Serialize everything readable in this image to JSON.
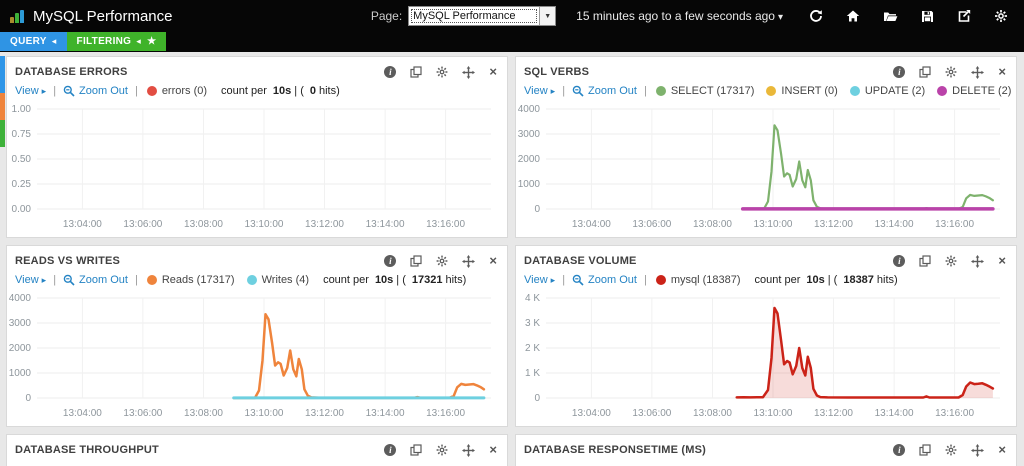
{
  "ui": {
    "sep": "|",
    "icons": {
      "caret_right": "▸",
      "caret_left": "◂",
      "caret_down": "▾",
      "select_arrow": "▼",
      "star": "★",
      "close": "×",
      "info": "i"
    }
  },
  "topbar": {
    "title": "MySQL Performance",
    "page_label": "Page:",
    "page_value": "MySQL Performance",
    "time_range": "15 minutes ago to a few seconds ago",
    "icon_names": [
      "refresh",
      "home",
      "open-folder",
      "save",
      "share",
      "settings"
    ]
  },
  "tabs": {
    "query": "QUERY",
    "filtering": "FILTERING"
  },
  "row_toggles": [
    {
      "color": "#2f96e8",
      "height": 37
    },
    {
      "color": "#ef843c",
      "height": 27
    },
    {
      "color": "#3eb139",
      "height": 27
    }
  ],
  "panels": [
    {
      "title": "DATABASE ERRORS",
      "view": "View",
      "zoom_out": "Zoom Out",
      "legend": [
        {
          "label": "errors (0)",
          "color": "#e24d42"
        }
      ],
      "meta": {
        "pre": "count per",
        "interval": "10s",
        "open": "| (",
        "hits": "0",
        "post": "hits)"
      }
    },
    {
      "title": "SQL VERBS",
      "view": "View",
      "zoom_out": "Zoom Out",
      "legend": [
        {
          "label": "SELECT (17317)",
          "color": "#7eb26d"
        },
        {
          "label": "INSERT (0)",
          "color": "#eab839"
        },
        {
          "label": "UPDATE (2)",
          "color": "#6ed0e0"
        },
        {
          "label": "DELETE (2)",
          "color": "#ba43a9"
        }
      ],
      "meta": {
        "pre": "count per",
        "interval": "10s",
        "open": "| (",
        "hits": "17321",
        "post": "hits)"
      }
    },
    {
      "title": "READS VS WRITES",
      "view": "View",
      "zoom_out": "Zoom Out",
      "legend": [
        {
          "label": "Reads (17317)",
          "color": "#ef843c"
        },
        {
          "label": "Writes (4)",
          "color": "#6ed0e0"
        }
      ],
      "meta": {
        "pre": "count per",
        "interval": "10s",
        "open": "| (",
        "hits": "17321",
        "post": "hits)"
      }
    },
    {
      "title": "DATABASE VOLUME",
      "view": "View",
      "zoom_out": "Zoom Out",
      "legend": [
        {
          "label": "mysql (18387)",
          "color": "#cb2318"
        }
      ],
      "meta": {
        "pre": "count per",
        "interval": "10s",
        "open": "| (",
        "hits": "18387",
        "post": "hits)"
      }
    },
    {
      "title": "DATABASE THROUGHPUT"
    },
    {
      "title": "DATABASE RESPONSETIME (MS)"
    }
  ],
  "chart_data": [
    {
      "id": "errors",
      "type": "line",
      "title": "DATABASE ERRORS",
      "x_domain": [
        0,
        900
      ],
      "x_unit": "seconds after 13:02:30",
      "ylim": [
        0,
        1
      ],
      "grid": true,
      "xticks": [
        {
          "v": 90,
          "label": "13:04:00"
        },
        {
          "v": 210,
          "label": "13:06:00"
        },
        {
          "v": 330,
          "label": "13:08:00"
        },
        {
          "v": 450,
          "label": "13:10:00"
        },
        {
          "v": 570,
          "label": "13:12:00"
        },
        {
          "v": 690,
          "label": "13:14:00"
        },
        {
          "v": 810,
          "label": "13:16:00"
        }
      ],
      "yticks": [
        {
          "v": 1,
          "label": "1.00"
        },
        {
          "v": 0.75,
          "label": "0.75"
        },
        {
          "v": 0.5,
          "label": "0.50"
        },
        {
          "v": 0.25,
          "label": "0.25"
        },
        {
          "v": 0,
          "label": "0.00"
        }
      ],
      "series": [
        {
          "name": "errors",
          "color": "#e24d42",
          "width": 2,
          "points": []
        }
      ]
    },
    {
      "id": "verbs",
      "type": "line",
      "title": "SQL VERBS",
      "x_domain": [
        0,
        900
      ],
      "x_unit": "seconds after 13:02:30",
      "ylim": [
        0,
        4000
      ],
      "grid": true,
      "xticks": [
        {
          "v": 90,
          "label": "13:04:00"
        },
        {
          "v": 210,
          "label": "13:06:00"
        },
        {
          "v": 330,
          "label": "13:08:00"
        },
        {
          "v": 450,
          "label": "13:10:00"
        },
        {
          "v": 570,
          "label": "13:12:00"
        },
        {
          "v": 690,
          "label": "13:14:00"
        },
        {
          "v": 810,
          "label": "13:16:00"
        }
      ],
      "yticks": [
        {
          "v": 4000,
          "label": "4000"
        },
        {
          "v": 3000,
          "label": "3000"
        },
        {
          "v": 2000,
          "label": "2000"
        },
        {
          "v": 1000,
          "label": "1000"
        },
        {
          "v": 0,
          "label": "0"
        }
      ],
      "series": [
        {
          "name": "SELECT",
          "color": "#7eb26d",
          "width": 2.2,
          "points": [
            [
              390,
              2
            ],
            [
              420,
              2
            ],
            [
              432,
              2
            ],
            [
              440,
              300
            ],
            [
              447,
              1500
            ],
            [
              453,
              3350
            ],
            [
              459,
              3150
            ],
            [
              466,
              2200
            ],
            [
              472,
              1300
            ],
            [
              478,
              1430
            ],
            [
              483,
              1370
            ],
            [
              489,
              900
            ],
            [
              496,
              1200
            ],
            [
              502,
              1900
            ],
            [
              508,
              1150
            ],
            [
              514,
              870
            ],
            [
              519,
              1560
            ],
            [
              525,
              1150
            ],
            [
              530,
              350
            ],
            [
              537,
              90
            ],
            [
              544,
              25
            ],
            [
              558,
              8
            ],
            [
              600,
              5
            ],
            [
              660,
              5
            ],
            [
              720,
              5
            ],
            [
              748,
              8
            ],
            [
              754,
              35
            ],
            [
              760,
              8
            ],
            [
              800,
              5
            ],
            [
              818,
              6
            ],
            [
              826,
              80
            ],
            [
              833,
              430
            ],
            [
              841,
              565
            ],
            [
              849,
              525
            ],
            [
              857,
              540
            ],
            [
              865,
              555
            ],
            [
              872,
              505
            ],
            [
              880,
              430
            ],
            [
              886,
              350
            ]
          ]
        },
        {
          "name": "INSERT",
          "color": "#eab839",
          "width": 2,
          "points": [
            [
              390,
              5
            ],
            [
              886,
              5
            ]
          ]
        },
        {
          "name": "UPDATE",
          "color": "#6ed0e0",
          "width": 3,
          "points": [
            [
              390,
              5
            ],
            [
              886,
              5
            ]
          ]
        },
        {
          "name": "DELETE",
          "color": "#ba43a9",
          "width": 3.5,
          "points": [
            [
              390,
              5
            ],
            [
              886,
              5
            ]
          ]
        }
      ]
    },
    {
      "id": "readswrites",
      "type": "line",
      "title": "READS VS WRITES",
      "x_domain": [
        0,
        900
      ],
      "x_unit": "seconds after 13:02:30",
      "ylim": [
        0,
        4000
      ],
      "grid": true,
      "xticks": [
        {
          "v": 90,
          "label": "13:04:00"
        },
        {
          "v": 210,
          "label": "13:06:00"
        },
        {
          "v": 330,
          "label": "13:08:00"
        },
        {
          "v": 450,
          "label": "13:10:00"
        },
        {
          "v": 570,
          "label": "13:12:00"
        },
        {
          "v": 690,
          "label": "13:14:00"
        },
        {
          "v": 810,
          "label": "13:16:00"
        }
      ],
      "yticks": [
        {
          "v": 4000,
          "label": "4000"
        },
        {
          "v": 3000,
          "label": "3000"
        },
        {
          "v": 2000,
          "label": "2000"
        },
        {
          "v": 1000,
          "label": "1000"
        },
        {
          "v": 0,
          "label": "0"
        }
      ],
      "series": [
        {
          "name": "Reads",
          "color": "#ef843c",
          "width": 2.5,
          "points": [
            [
              390,
              2
            ],
            [
              420,
              2
            ],
            [
              432,
              2
            ],
            [
              440,
              300
            ],
            [
              447,
              1500
            ],
            [
              453,
              3350
            ],
            [
              459,
              3150
            ],
            [
              466,
              2200
            ],
            [
              472,
              1300
            ],
            [
              478,
              1430
            ],
            [
              483,
              1370
            ],
            [
              489,
              900
            ],
            [
              496,
              1200
            ],
            [
              502,
              1900
            ],
            [
              508,
              1150
            ],
            [
              514,
              870
            ],
            [
              519,
              1560
            ],
            [
              525,
              1150
            ],
            [
              530,
              350
            ],
            [
              537,
              90
            ],
            [
              544,
              25
            ],
            [
              558,
              8
            ],
            [
              600,
              5
            ],
            [
              660,
              5
            ],
            [
              720,
              5
            ],
            [
              748,
              8
            ],
            [
              754,
              35
            ],
            [
              760,
              8
            ],
            [
              800,
              5
            ],
            [
              818,
              6
            ],
            [
              826,
              80
            ],
            [
              833,
              430
            ],
            [
              841,
              565
            ],
            [
              849,
              525
            ],
            [
              857,
              540
            ],
            [
              865,
              555
            ],
            [
              872,
              505
            ],
            [
              880,
              430
            ],
            [
              886,
              350
            ]
          ]
        },
        {
          "name": "Writes",
          "color": "#6ed0e0",
          "width": 3,
          "points": [
            [
              390,
              5
            ],
            [
              886,
              5
            ]
          ]
        }
      ]
    },
    {
      "id": "volume",
      "type": "area",
      "title": "DATABASE VOLUME",
      "x_domain": [
        0,
        900
      ],
      "x_unit": "seconds after 13:02:30",
      "ylim": [
        0,
        4000
      ],
      "grid": true,
      "xticks": [
        {
          "v": 90,
          "label": "13:04:00"
        },
        {
          "v": 210,
          "label": "13:06:00"
        },
        {
          "v": 330,
          "label": "13:08:00"
        },
        {
          "v": 450,
          "label": "13:10:00"
        },
        {
          "v": 570,
          "label": "13:12:00"
        },
        {
          "v": 690,
          "label": "13:14:00"
        },
        {
          "v": 810,
          "label": "13:16:00"
        }
      ],
      "yticks": [
        {
          "v": 4000,
          "label": "4 K"
        },
        {
          "v": 3000,
          "label": "3 K"
        },
        {
          "v": 2000,
          "label": "2 K"
        },
        {
          "v": 1000,
          "label": "1 K"
        },
        {
          "v": 0,
          "label": "0"
        }
      ],
      "series": [
        {
          "name": "mysql",
          "color": "#cb2318",
          "width": 2.5,
          "fill": "rgba(203,35,24,0.16)",
          "points": [
            [
              378,
              25
            ],
            [
              392,
              30
            ],
            [
              405,
              25
            ],
            [
              418,
              30
            ],
            [
              430,
              28
            ],
            [
              440,
              320
            ],
            [
              447,
              1600
            ],
            [
              453,
              3600
            ],
            [
              459,
              3380
            ],
            [
              466,
              2300
            ],
            [
              472,
              1350
            ],
            [
              478,
              1480
            ],
            [
              483,
              1420
            ],
            [
              489,
              950
            ],
            [
              496,
              1280
            ],
            [
              502,
              2000
            ],
            [
              508,
              1200
            ],
            [
              514,
              900
            ],
            [
              519,
              1650
            ],
            [
              525,
              1200
            ],
            [
              530,
              370
            ],
            [
              537,
              100
            ],
            [
              544,
              35
            ],
            [
              558,
              25
            ],
            [
              600,
              20
            ],
            [
              660,
              20
            ],
            [
              720,
              20
            ],
            [
              748,
              22
            ],
            [
              754,
              65
            ],
            [
              760,
              22
            ],
            [
              800,
              20
            ],
            [
              818,
              22
            ],
            [
              826,
              120
            ],
            [
              833,
              460
            ],
            [
              841,
              620
            ],
            [
              849,
              555
            ],
            [
              857,
              570
            ],
            [
              865,
              590
            ],
            [
              872,
              530
            ],
            [
              880,
              450
            ],
            [
              886,
              380
            ]
          ]
        }
      ]
    }
  ]
}
